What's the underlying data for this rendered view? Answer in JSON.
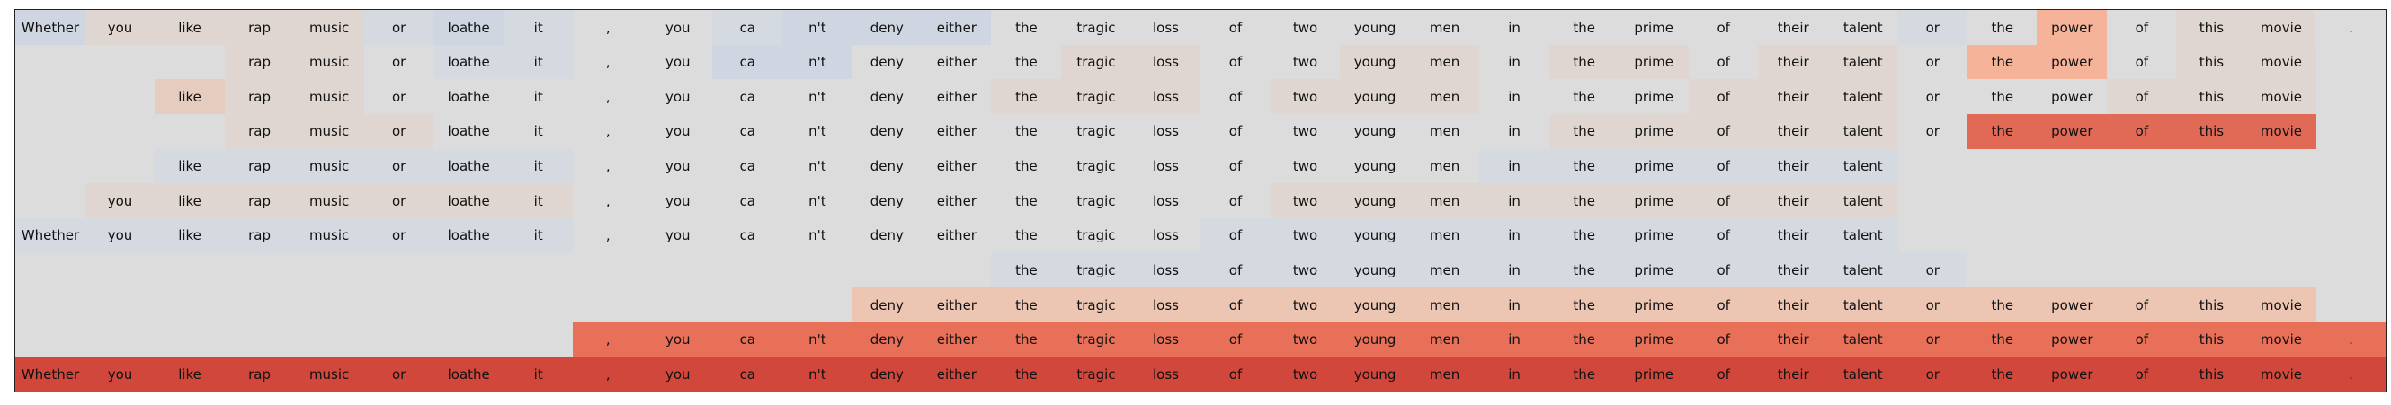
{
  "tokens": [
    "Whether",
    "you",
    "like",
    "rap",
    "music",
    "or",
    "loathe",
    "it",
    ",",
    "you",
    "ca",
    "n't",
    "deny",
    "either",
    "the",
    "tragic",
    "loss",
    "of",
    "two",
    "young",
    "men",
    "in",
    "the",
    "prime",
    "of",
    "their",
    "talent",
    "or",
    "the",
    "power",
    "of",
    "this",
    "movie",
    "."
  ],
  "legend": {
    "b2": "#d0d6e1",
    "b1": "#d5d9e0",
    "n0": "#dcdcdc",
    "w1": "#e0d6d1",
    "w2": "#e6cbbf",
    "w3": "#ecc5b3",
    "o1": "#f5b49a",
    "o2": "#e87058",
    "r1": "#e06a55",
    "r2": "#d2473c"
  },
  "rows": [
    {
      "span": [
        0,
        33
      ],
      "shades": [
        "b2",
        "w1",
        "w1",
        "w1",
        "w1",
        "b1",
        "b2",
        "b1",
        "n0",
        "n0",
        "b1",
        "b2",
        "b2",
        "b2",
        "n0",
        "n0",
        "n0",
        "n0",
        "n0",
        "n0",
        "n0",
        "n0",
        "n0",
        "n0",
        "n0",
        "n0",
        "n0",
        "b1",
        "n0",
        "o1",
        "n0",
        "w1",
        "w1",
        "n0"
      ]
    },
    {
      "span": [
        3,
        32
      ],
      "shades": [
        "n0",
        "n0",
        "n0",
        "w1",
        "w1",
        "n0",
        "b1",
        "b1",
        "n0",
        "n0",
        "b2",
        "b2",
        "n0",
        "n0",
        "n0",
        "w1",
        "w1",
        "n0",
        "n0",
        "w1",
        "w1",
        "n0",
        "w1",
        "w1",
        "n0",
        "w1",
        "w1",
        "n0",
        "o1",
        "o1",
        "n0",
        "w1",
        "w1",
        "n0"
      ]
    },
    {
      "span": [
        2,
        32
      ],
      "shades": [
        "n0",
        "n0",
        "w2",
        "w1",
        "w1",
        "n0",
        "n0",
        "n0",
        "n0",
        "n0",
        "n0",
        "n0",
        "n0",
        "n0",
        "w1",
        "w1",
        "w1",
        "n0",
        "w1",
        "w1",
        "w1",
        "n0",
        "n0",
        "n0",
        "w1",
        "w1",
        "w1",
        "n0",
        "n0",
        "n0",
        "w1",
        "w1",
        "w1",
        "n0"
      ]
    },
    {
      "span": [
        3,
        32
      ],
      "shades": [
        "n0",
        "n0",
        "n0",
        "w1",
        "w1",
        "w1",
        "n0",
        "n0",
        "n0",
        "n0",
        "n0",
        "n0",
        "n0",
        "n0",
        "n0",
        "n0",
        "n0",
        "n0",
        "n0",
        "n0",
        "n0",
        "n0",
        "w1",
        "w1",
        "w1",
        "w1",
        "w1",
        "n0",
        "r1",
        "r1",
        "r1",
        "r1",
        "r1",
        "n0"
      ]
    },
    {
      "span": [
        2,
        26
      ],
      "shades": [
        "n0",
        "n0",
        "b1",
        "b1",
        "b1",
        "b1",
        "b1",
        "b1",
        "n0",
        "n0",
        "n0",
        "n0",
        "n0",
        "n0",
        "n0",
        "n0",
        "n0",
        "n0",
        "n0",
        "n0",
        "n0",
        "b1",
        "b1",
        "b1",
        "b1",
        "b1",
        "b1",
        "n0",
        "n0",
        "n0",
        "n0",
        "n0",
        "n0",
        "n0"
      ]
    },
    {
      "span": [
        1,
        26
      ],
      "shades": [
        "n0",
        "w1",
        "w1",
        "w1",
        "w1",
        "w1",
        "w1",
        "w1",
        "n0",
        "n0",
        "n0",
        "n0",
        "n0",
        "n0",
        "n0",
        "n0",
        "n0",
        "n0",
        "w1",
        "w1",
        "w1",
        "w1",
        "w1",
        "w1",
        "w1",
        "w1",
        "w1",
        "n0",
        "n0",
        "n0",
        "n0",
        "n0",
        "n0",
        "n0"
      ]
    },
    {
      "span": [
        0,
        26
      ],
      "shades": [
        "b1",
        "b1",
        "b1",
        "b1",
        "b1",
        "b1",
        "b1",
        "b1",
        "n0",
        "n0",
        "n0",
        "n0",
        "n0",
        "n0",
        "n0",
        "n0",
        "n0",
        "b1",
        "b1",
        "b1",
        "b1",
        "b1",
        "b1",
        "b1",
        "b1",
        "b1",
        "b1",
        "n0",
        "n0",
        "n0",
        "n0",
        "n0",
        "n0",
        "n0"
      ]
    },
    {
      "span": [
        14,
        27
      ],
      "shades": [
        "n0",
        "n0",
        "n0",
        "n0",
        "n0",
        "n0",
        "n0",
        "n0",
        "n0",
        "n0",
        "n0",
        "n0",
        "n0",
        "n0",
        "b1",
        "b1",
        "b1",
        "b1",
        "b1",
        "b1",
        "b1",
        "b1",
        "b1",
        "b1",
        "b1",
        "b1",
        "b1",
        "b1",
        "n0",
        "n0",
        "n0",
        "n0",
        "n0",
        "n0"
      ]
    },
    {
      "span": [
        12,
        32
      ],
      "shades": [
        "n0",
        "n0",
        "n0",
        "n0",
        "n0",
        "n0",
        "n0",
        "n0",
        "n0",
        "n0",
        "n0",
        "n0",
        "w3",
        "w3",
        "w3",
        "w3",
        "w3",
        "w3",
        "w3",
        "w3",
        "w3",
        "w3",
        "w3",
        "w3",
        "w3",
        "w3",
        "w3",
        "w3",
        "w3",
        "w3",
        "w3",
        "w3",
        "w3",
        "n0"
      ]
    },
    {
      "span": [
        8,
        33
      ],
      "shades": [
        "n0",
        "n0",
        "n0",
        "n0",
        "n0",
        "n0",
        "n0",
        "n0",
        "o2",
        "o2",
        "o2",
        "o2",
        "o2",
        "o2",
        "o2",
        "o2",
        "o2",
        "o2",
        "o2",
        "o2",
        "o2",
        "o2",
        "o2",
        "o2",
        "o2",
        "o2",
        "o2",
        "o2",
        "o2",
        "o2",
        "o2",
        "o2",
        "o2",
        "o2"
      ]
    },
    {
      "span": [
        0,
        33
      ],
      "shades": [
        "r2",
        "r2",
        "r2",
        "r2",
        "r2",
        "r2",
        "r2",
        "r2",
        "r2",
        "r2",
        "r2",
        "r2",
        "r2",
        "r2",
        "r2",
        "r2",
        "r2",
        "r2",
        "r2",
        "r2",
        "r2",
        "r2",
        "r2",
        "r2",
        "r2",
        "r2",
        "r2",
        "r2",
        "r2",
        "r2",
        "r2",
        "r2",
        "r2",
        "r2"
      ]
    }
  ]
}
